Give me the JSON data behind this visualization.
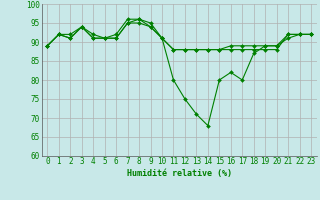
{
  "x": [
    0,
    1,
    2,
    3,
    4,
    5,
    6,
    7,
    8,
    9,
    10,
    11,
    12,
    13,
    14,
    15,
    16,
    17,
    18,
    19,
    20,
    21,
    22,
    23
  ],
  "line1": [
    89,
    92,
    91,
    94,
    91,
    91,
    91,
    95,
    95,
    94,
    91,
    88,
    88,
    88,
    88,
    88,
    88,
    88,
    88,
    88,
    88,
    92,
    92,
    92
  ],
  "line2": [
    89,
    92,
    92,
    94,
    92,
    91,
    92,
    96,
    96,
    95,
    91,
    88,
    88,
    88,
    88,
    88,
    89,
    89,
    89,
    89,
    89,
    92,
    92,
    92
  ],
  "line3": [
    89,
    92,
    91,
    94,
    91,
    91,
    91,
    95,
    96,
    94,
    91,
    80,
    75,
    71,
    68,
    80,
    82,
    80,
    87,
    89,
    89,
    91,
    92,
    92
  ],
  "line_color": "#008000",
  "bg_color": "#c8e8e8",
  "grid_color": "#b0b0b0",
  "xlabel": "Humidité relative (%)",
  "ylim": [
    60,
    100
  ],
  "xlim_min": -0.5,
  "xlim_max": 23.5,
  "yticks": [
    60,
    65,
    70,
    75,
    80,
    85,
    90,
    95,
    100
  ],
  "xticks": [
    0,
    1,
    2,
    3,
    4,
    5,
    6,
    7,
    8,
    9,
    10,
    11,
    12,
    13,
    14,
    15,
    16,
    17,
    18,
    19,
    20,
    21,
    22,
    23
  ],
  "xlabel_fontsize": 6.0,
  "tick_fontsize": 5.5
}
